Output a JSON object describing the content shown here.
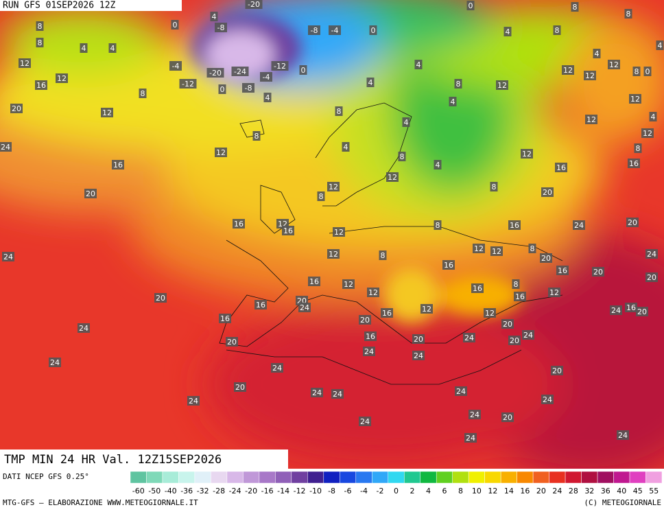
{
  "header": {
    "run": "RUN GFS 01SEP2026 12Z"
  },
  "title": "TMP MIN 24 HR Val. 12Z15SEP2026",
  "footer": {
    "source": "DATI NCEP GFS 0.25°",
    "credit": "MTG-GFS — ELABORAZIONE WWW.METEOGIORNALE.IT",
    "copyright": "(C) METEOGIORNALE"
  },
  "colorbar": {
    "ticks": [
      -60,
      -50,
      -40,
      -36,
      -32,
      -28,
      -24,
      -20,
      -16,
      -14,
      -12,
      -10,
      -8,
      -6,
      -4,
      -2,
      0,
      2,
      4,
      6,
      8,
      10,
      12,
      14,
      16,
      20,
      24,
      28,
      32,
      36,
      40,
      45,
      55
    ],
    "colors": [
      "#5fc4a0",
      "#7fd9b8",
      "#a8ecd8",
      "#c8f4ec",
      "#e0f0f8",
      "#e8d8f0",
      "#d8b8e8",
      "#c098d8",
      "#a878c8",
      "#9060b8",
      "#7040a0",
      "#402090",
      "#1020c0",
      "#1848e0",
      "#2878f0",
      "#30a8f8",
      "#30d8f0",
      "#20c890",
      "#10b840",
      "#60d020",
      "#b0e010",
      "#f0f000",
      "#f8d800",
      "#f8b000",
      "#f88800",
      "#f06020",
      "#e83020",
      "#d01830",
      "#b01040",
      "#a01060",
      "#c01890",
      "#e040c0",
      "#f0a0e0"
    ]
  },
  "map_labels": [
    -20,
    0,
    8,
    4,
    8,
    0,
    -8,
    -8,
    -4,
    0,
    4,
    8,
    8,
    8,
    4,
    4,
    4,
    -4,
    12,
    -12,
    0,
    4,
    4,
    12,
    12,
    12,
    8,
    0,
    -20,
    -24,
    -4,
    12,
    16,
    -12,
    0,
    -8,
    4,
    8,
    12,
    8,
    4,
    4,
    12,
    20,
    12,
    8,
    12,
    4,
    4,
    8,
    12,
    24,
    12,
    4,
    8,
    12,
    8,
    16,
    4,
    16,
    16,
    12,
    12,
    8,
    8,
    20,
    20,
    16,
    12,
    16,
    8,
    16,
    24,
    20,
    12,
    24,
    12,
    8,
    12,
    12,
    8,
    20,
    24,
    16,
    16,
    20,
    20,
    16,
    12,
    16,
    8,
    12,
    16,
    12,
    20,
    16,
    20,
    24,
    12,
    24,
    16,
    20,
    12,
    16,
    16,
    20,
    20,
    24,
    24,
    16,
    20,
    24,
    20,
    20,
    24,
    24,
    24,
    24,
    20,
    20,
    24,
    24,
    24,
    24,
    24,
    24,
    20,
    24,
    24,
    24
  ]
}
